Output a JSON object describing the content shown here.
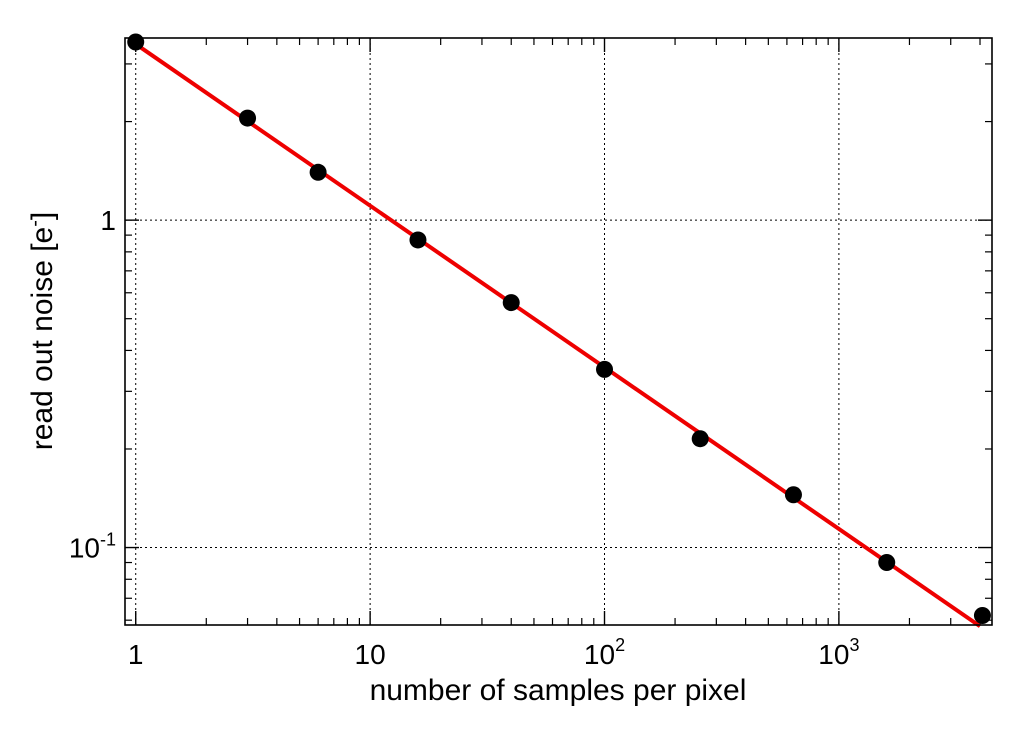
{
  "chart_data": {
    "type": "scatter",
    "title": "",
    "xlabel": "number of samples per pixel",
    "ylabel": {
      "main": "read out noise [e",
      "sup": "-",
      "end": "]"
    },
    "x_scale": "log",
    "y_scale": "log",
    "xlim": [
      0.9,
      4500
    ],
    "ylim": [
      0.058,
      3.6
    ],
    "grid": true,
    "x_ticks": [
      {
        "value": 1,
        "base": "1",
        "exp": ""
      },
      {
        "value": 10,
        "base": "10",
        "exp": ""
      },
      {
        "value": 100,
        "base": "10",
        "exp": "2"
      },
      {
        "value": 1000,
        "base": "10",
        "exp": "3"
      }
    ],
    "y_ticks": [
      {
        "value": 0.1,
        "base": "10",
        "exp": "-1"
      },
      {
        "value": 1,
        "base": "1",
        "exp": ""
      }
    ],
    "series": [
      {
        "type": "scatter",
        "color": "#000000",
        "x": [
          1,
          3,
          6,
          16,
          40,
          100,
          256,
          640,
          1600,
          4096
        ],
        "y": [
          3.5,
          2.05,
          1.4,
          0.87,
          0.56,
          0.35,
          0.215,
          0.145,
          0.09,
          0.062
        ]
      },
      {
        "type": "line",
        "color": "#ee0000",
        "x": [
          1,
          4000
        ],
        "y": [
          3.45,
          0.0575
        ]
      }
    ]
  }
}
